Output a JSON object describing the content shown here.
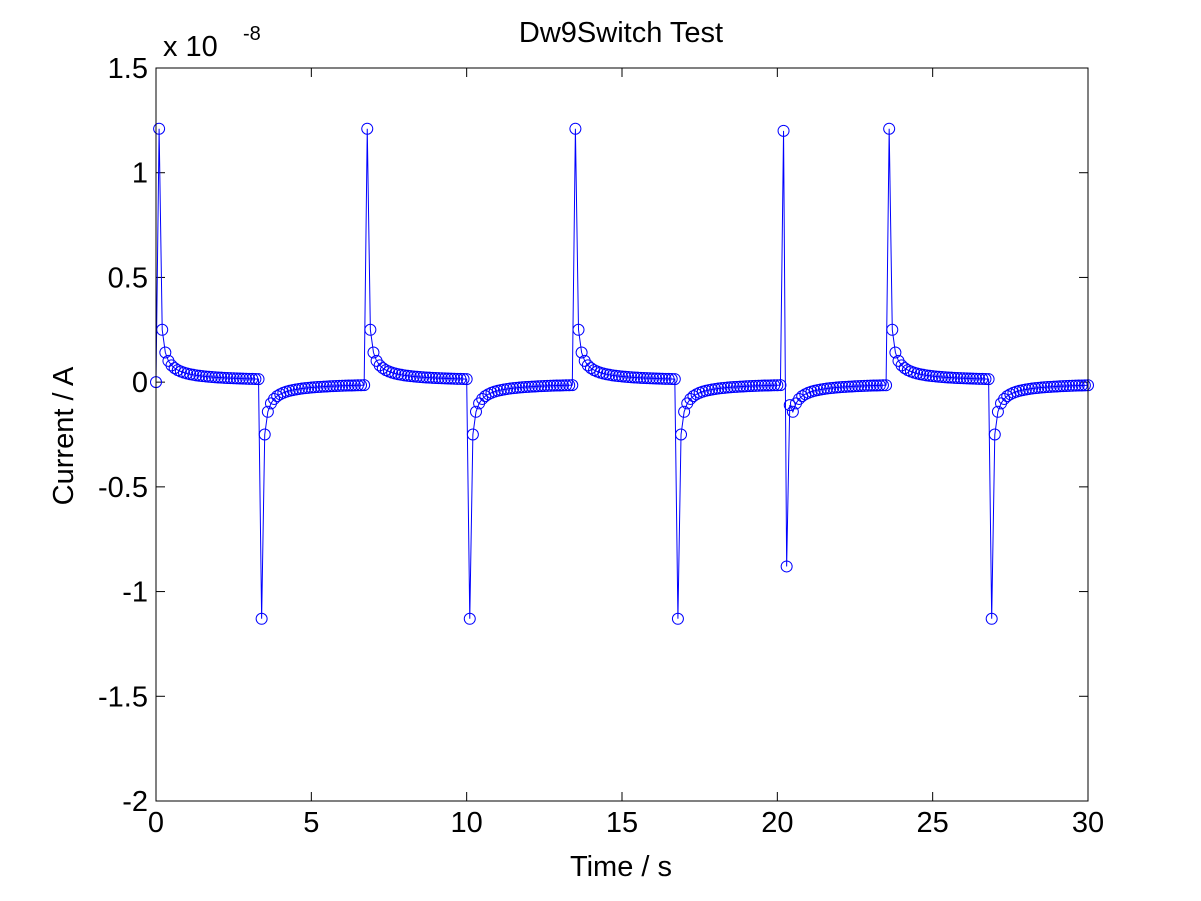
{
  "chart_data": {
    "type": "line",
    "title": "Dw9Switch Test",
    "xlabel": "Time / s",
    "ylabel": "Current / A",
    "xlim": [
      0,
      30
    ],
    "ylim": [
      -2,
      1.5
    ],
    "y_scale_base": "x 10",
    "y_scale_exponent": "-8",
    "xticks": [
      "0",
      "5",
      "10",
      "15",
      "20",
      "25",
      "30"
    ],
    "yticks": [
      "-2",
      "-1.5",
      "-1",
      "-0.5",
      "0",
      "0.5",
      "1",
      "1.5"
    ],
    "series_color": "#0000ff",
    "marker": "circle",
    "pulse_period_s": 0.1,
    "peaks": [
      {
        "t": 0.2,
        "value": 1.21
      },
      {
        "t": 3.5,
        "value": -1.13
      },
      {
        "t": 6.85,
        "value": 1.21
      },
      {
        "t": 10.2,
        "value": -1.13
      },
      {
        "t": 13.55,
        "value": 1.21
      },
      {
        "t": 16.9,
        "value": -1.13
      },
      {
        "t": 20.25,
        "value": 1.2
      },
      {
        "t": 20.35,
        "value": -0.88
      },
      {
        "t": 23.65,
        "value": 1.21
      },
      {
        "t": 27.0,
        "value": -1.13
      }
    ],
    "segments": [
      {
        "start": 0.0,
        "end": 0.1,
        "sign": 0,
        "peak": 0,
        "start_value": 0
      },
      {
        "start": 0.1,
        "end": 3.4,
        "sign": 1,
        "peak": 1.21,
        "start_value": 0
      },
      {
        "start": 3.4,
        "end": 6.8,
        "sign": -1,
        "peak": 1.13
      },
      {
        "start": 6.8,
        "end": 10.1,
        "sign": 1,
        "peak": 1.21
      },
      {
        "start": 10.1,
        "end": 13.5,
        "sign": -1,
        "peak": 1.13
      },
      {
        "start": 13.5,
        "end": 16.8,
        "sign": 1,
        "peak": 1.21
      },
      {
        "start": 16.8,
        "end": 20.2,
        "sign": -1,
        "peak": 1.13
      },
      {
        "start": 20.2,
        "end": 20.3,
        "sign": 1,
        "peak": 1.2,
        "no_decay": true
      },
      {
        "start": 20.3,
        "end": 23.6,
        "sign": -1,
        "peak": 0.88,
        "second": 0.11
      },
      {
        "start": 23.6,
        "end": 26.9,
        "sign": 1,
        "peak": 1.21
      },
      {
        "start": 26.9,
        "end": 30.0,
        "sign": -1,
        "peak": 1.13
      }
    ]
  }
}
